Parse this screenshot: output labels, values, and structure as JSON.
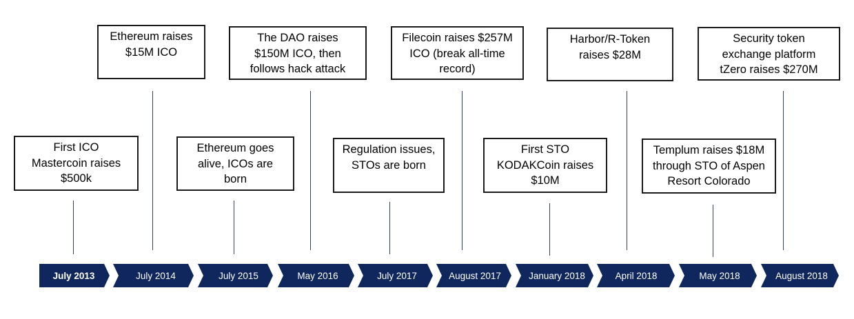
{
  "colors": {
    "chevron_fill": "#10275e",
    "chevron_text": "#ffffff",
    "connector": "#2d3f73",
    "box_border": "#1a1a1a"
  },
  "timeline": [
    {
      "date": "July 2013",
      "event": "First ICO\nMastercoin raises\n$500k"
    },
    {
      "date": "July 2014",
      "event": "Ethereum raises\n$15M ICO"
    },
    {
      "date": "July 2015",
      "event": "Ethereum goes\nalive, ICOs are\nborn"
    },
    {
      "date": "May 2016",
      "event": "The DAO raises\n$150M ICO, then\nfollows hack attack"
    },
    {
      "date": "July 2017",
      "event": "Regulation issues,\nSTOs are born"
    },
    {
      "date": "August 2017",
      "event": "Filecoin raises $257M\nICO (break all-time\nrecord)"
    },
    {
      "date": "January 2018",
      "event": "First STO\nKODAKCoin raises\n$10M"
    },
    {
      "date": "April 2018",
      "event": "Harbor/R-Token\nraises $28M"
    },
    {
      "date": "May 2018",
      "event": "Templum raises $18M\nthrough STO of Aspen\nResort Colorado"
    },
    {
      "date": "August 2018",
      "event": "Security token\nexchange platform\ntZero raises $270M"
    }
  ]
}
